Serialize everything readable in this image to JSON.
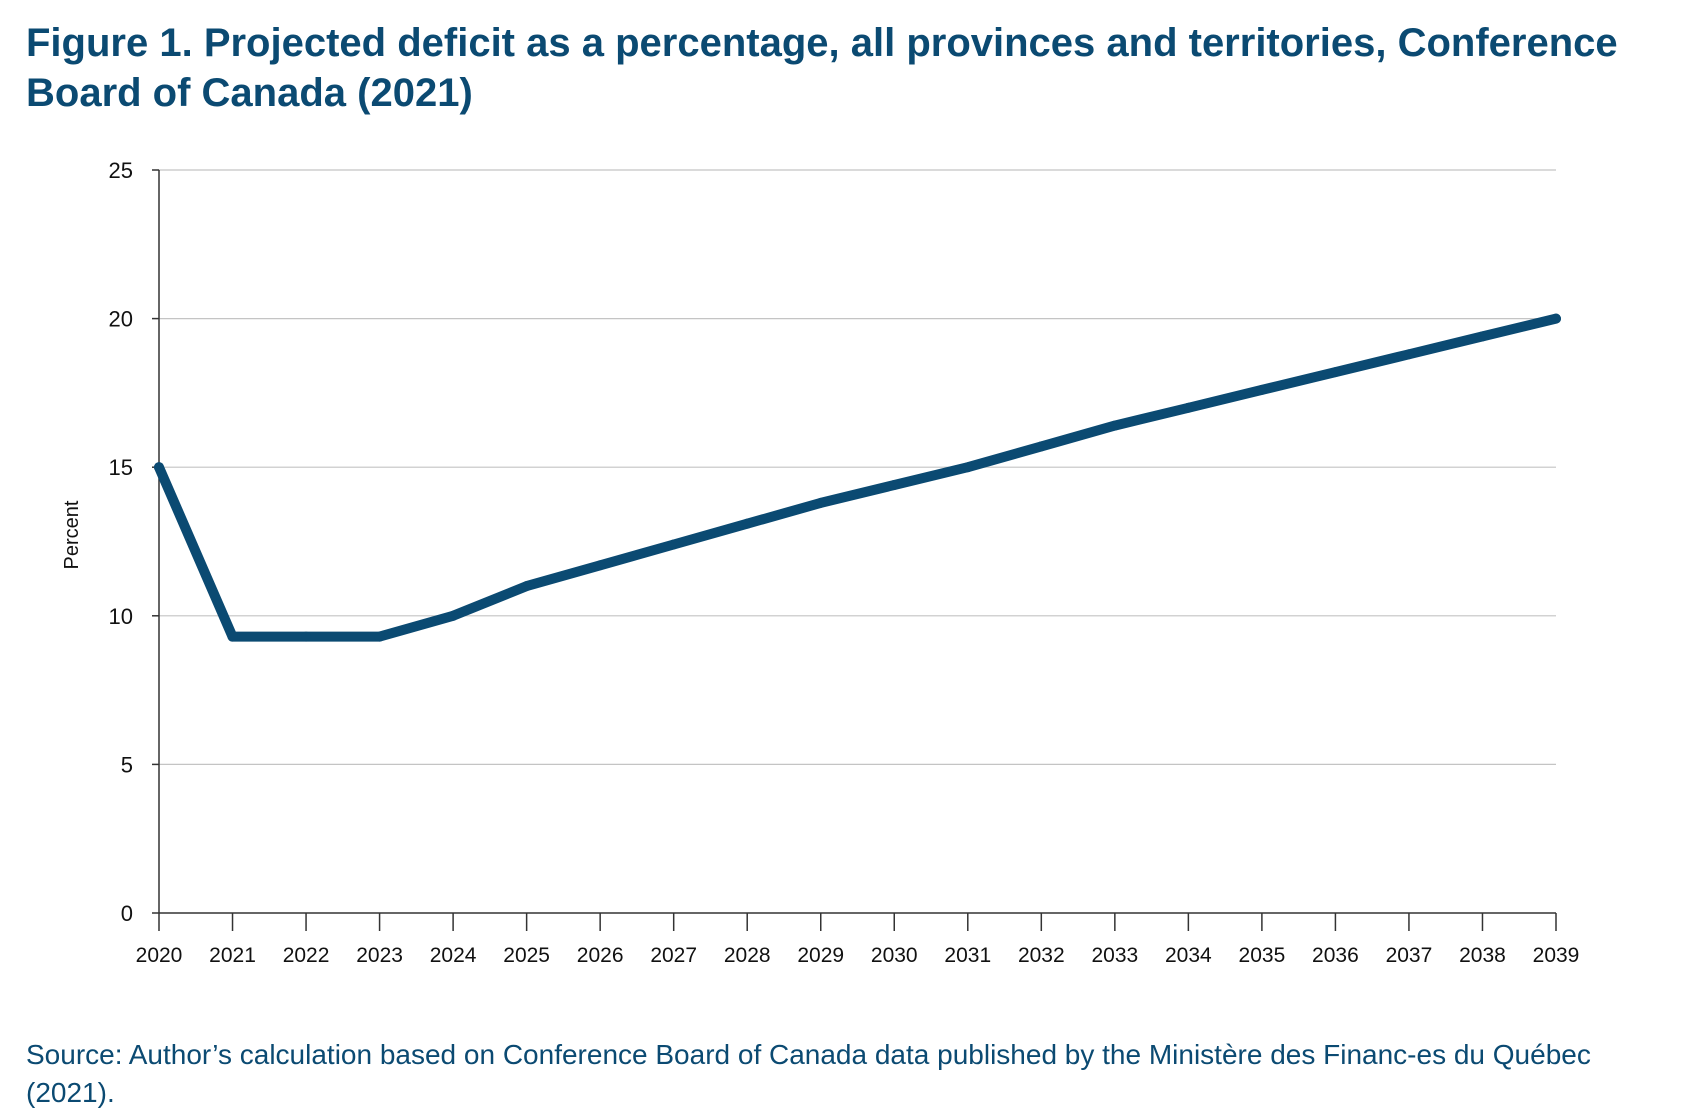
{
  "figure": {
    "title": "Figure 1. Projected deficit as a percentage, all provinces and territories, Conference Board of Canada (2021)",
    "source": "Source: Author’s calculation based on Conference Board of Canada data published by the Ministère des Financ-es du Québec (2021)."
  },
  "chart_data": {
    "type": "line",
    "title": "Figure 1. Projected deficit as a percentage, all provinces and territories, Conference Board of Canada (2021)",
    "xlabel": "",
    "ylabel": "Percent",
    "x": [
      "2020",
      "2021",
      "2022",
      "2023",
      "2024",
      "2025",
      "2026",
      "2027",
      "2028",
      "2029",
      "2030",
      "2031",
      "2032",
      "2033",
      "2034",
      "2035",
      "2036",
      "2037",
      "2038",
      "2039"
    ],
    "series": [
      {
        "values": [
          15,
          9.3,
          9.3,
          9.3,
          10,
          11,
          11.7,
          12.4,
          13.1,
          13.8,
          14.4,
          15,
          15.7,
          16.4,
          17,
          17.6,
          18.2,
          18.8,
          19.4,
          20
        ],
        "color": "#0b4a72"
      }
    ],
    "yticks": [
      "0",
      "5",
      "10",
      "15",
      "20",
      "25"
    ],
    "ylim": [
      0,
      25
    ],
    "grid": "horizontal",
    "legend": "none"
  }
}
